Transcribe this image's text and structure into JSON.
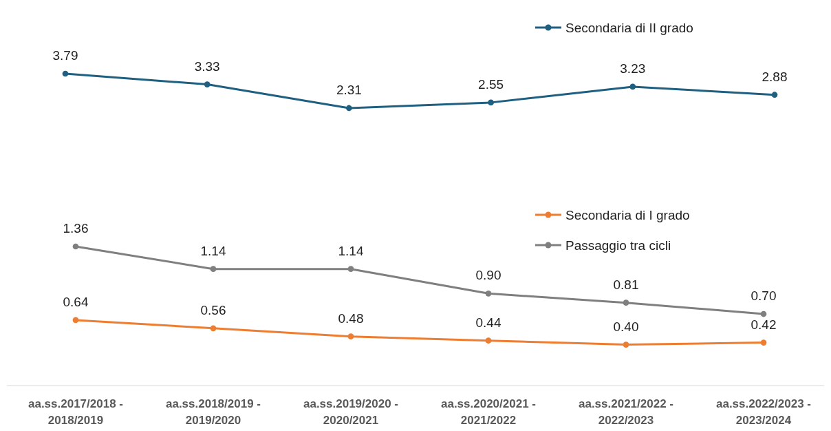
{
  "chart_data": [
    {
      "type": "line",
      "categories": [
        null,
        null,
        null,
        null,
        null,
        null
      ],
      "series": [
        {
          "name": "Secondaria di II grado",
          "color": "#1f5f7f",
          "values": [
            3.79,
            3.33,
            2.31,
            2.55,
            3.23,
            2.88
          ],
          "value_labels": [
            "3.79",
            "3.33",
            "2.31",
            "2.55",
            "3.23",
            "2.88"
          ]
        }
      ],
      "legend": "top right",
      "marker": "circle",
      "tick_labels": false
    },
    {
      "type": "line",
      "categories": [
        "aa.ss.2017/2018 - 2018/2019",
        "aa.ss.2018/2019 - 2019/2020",
        "aa.ss.2019/2020 - 2020/2021",
        "aa.ss.2020/2021 - 2021/2022",
        "aa.ss.2021/2022 - 2022/2023",
        "aa.ss.2022/2023 - 2023/2024"
      ],
      "series": [
        {
          "name": "Secondaria di I grado",
          "color": "#ed7d31",
          "values": [
            0.64,
            0.56,
            0.48,
            0.44,
            0.4,
            0.42
          ],
          "value_labels": [
            "0.64",
            "0.56",
            "0.48",
            "0.44",
            "0.40",
            "0.42"
          ]
        },
        {
          "name": "Passaggio tra cicli",
          "color": "#7f7f7f",
          "values": [
            1.36,
            1.14,
            1.14,
            0.9,
            0.81,
            0.7
          ],
          "value_labels": [
            "1.36",
            "1.14",
            "1.14",
            "0.90",
            "0.81",
            "0.70"
          ]
        }
      ],
      "legend": "right",
      "marker": "circle",
      "tick_labels": "x"
    }
  ]
}
